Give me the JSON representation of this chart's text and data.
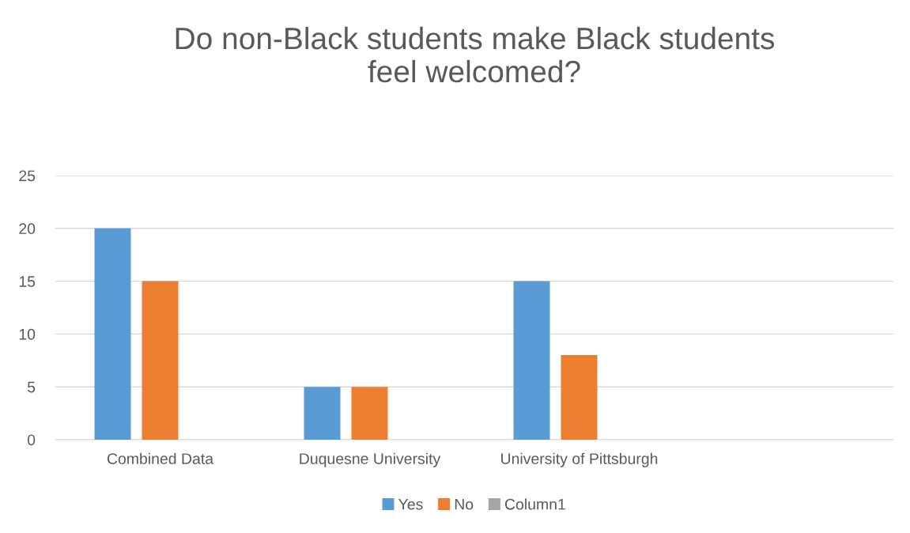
{
  "chart_data": {
    "type": "bar",
    "title": "Do non-Black students make Black students\nfeel welcomed?",
    "categories": [
      "Combined Data",
      "Duquesne University",
      "University of Pittsburgh",
      null
    ],
    "series": [
      {
        "name": "Yes",
        "color": "#5b9bd5",
        "values": [
          20,
          5,
          15,
          null
        ]
      },
      {
        "name": "No",
        "color": "#ed7d31",
        "values": [
          15,
          5,
          8,
          null
        ]
      },
      {
        "name": "Column1",
        "color": "#a5a5a5",
        "values": [
          null,
          null,
          null,
          null
        ]
      }
    ],
    "ylim": [
      0,
      25
    ],
    "yticks": [
      0,
      5,
      10,
      15,
      20,
      25
    ],
    "grid": "y",
    "legend": "bottom"
  }
}
